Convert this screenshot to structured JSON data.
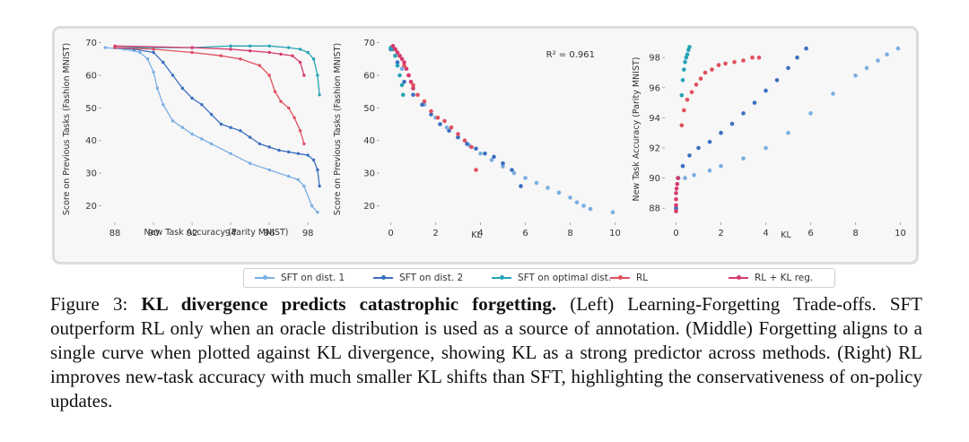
{
  "caption": {
    "figure_label": "Figure 3:",
    "title": "KL divergence predicts catastrophic forgetting.",
    "body": "(Left) Learning-Forgetting Trade-offs. SFT outperform RL only when an oracle distribution is used as a source of annotation. (Middle) Forgetting aligns to a single curve when plotted against KL divergence, showing KL as a strong predictor across methods. (Right) RL improves new-task accuracy with much smaller KL shifts than SFT, highlighting the conservativeness of on-policy updates."
  },
  "legend": [
    {
      "label": "SFT on dist. 1",
      "color": "#7aaee2"
    },
    {
      "label": "SFT on dist. 2",
      "color": "#3b6fc0"
    },
    {
      "label": "SFT on optimal dist.",
      "color": "#26a3b5"
    },
    {
      "label": "RL",
      "color": "#e0505d"
    },
    {
      "label": "RL + KL reg.",
      "color": "#d63a6c"
    }
  ],
  "chart_data": [
    {
      "type": "line",
      "title": "",
      "xlabel": "New Task Accuracy (Parity MNIST)",
      "ylabel": "Score on Previous Tasks (Fashion MNIST)",
      "xlim": [
        87.3,
        99.2
      ],
      "ylim": [
        16,
        71
      ],
      "xticks": [
        "88",
        "90",
        "92",
        "94",
        "96",
        "98"
      ],
      "yticks": [
        "70",
        "60",
        "50",
        "40",
        "30",
        "20"
      ],
      "series": [
        {
          "name": "SFT on dist. 1",
          "x": [
            87.5,
            88.5,
            89.3,
            89.7,
            90.0,
            90.2,
            90.5,
            91.0,
            91.5,
            92.0,
            92.5,
            93.0,
            94.0,
            95.0,
            96.0,
            97.0,
            97.5,
            97.8,
            98.2,
            98.5
          ],
          "y": [
            68.5,
            68,
            67,
            65,
            61,
            56,
            51,
            46,
            44,
            42,
            40.5,
            39,
            36,
            33,
            31,
            29,
            28,
            26,
            20,
            18
          ]
        },
        {
          "name": "SFT on dist. 2",
          "x": [
            88.0,
            89.0,
            90.0,
            90.5,
            91.0,
            91.5,
            92.0,
            92.5,
            93.0,
            93.5,
            94.0,
            94.5,
            95.0,
            95.5,
            96.0,
            96.5,
            97.0,
            97.5,
            98.0,
            98.3,
            98.5,
            98.6
          ],
          "y": [
            68.5,
            68,
            67,
            64,
            60,
            56,
            53,
            51,
            48,
            45,
            44,
            43,
            41,
            39,
            38,
            37,
            36.5,
            36,
            35.5,
            34,
            31,
            26
          ]
        },
        {
          "name": "SFT on optimal dist.",
          "x": [
            88.0,
            92.0,
            94.0,
            95.0,
            96.0,
            97.0,
            97.6,
            98.0,
            98.3,
            98.5,
            98.6
          ],
          "y": [
            68.5,
            68.5,
            69,
            69,
            69,
            68.5,
            68,
            67,
            65,
            60,
            54
          ]
        },
        {
          "name": "RL",
          "x": [
            88.0,
            90.0,
            92.0,
            93.5,
            94.5,
            95.5,
            96.0,
            96.3,
            96.6,
            97.0,
            97.3,
            97.6,
            97.8
          ],
          "y": [
            68.5,
            68,
            67,
            66,
            65,
            63,
            60,
            55,
            52,
            50,
            47,
            43,
            39
          ]
        },
        {
          "name": "RL + KL reg.",
          "x": [
            88.0,
            92.0,
            94.0,
            95.0,
            96.0,
            96.6,
            97.2,
            97.6,
            97.8
          ],
          "y": [
            69,
            68.5,
            68,
            67.5,
            67,
            66.5,
            66,
            64,
            60
          ]
        }
      ]
    },
    {
      "type": "scatter",
      "title": "",
      "xlabel": "KL",
      "ylabel": "Score on Previous Tasks (Fashion MNIST)",
      "xlim": [
        -0.5,
        10.3
      ],
      "ylim": [
        16,
        71
      ],
      "xticks": [
        "0",
        "2",
        "4",
        "6",
        "8",
        "10"
      ],
      "yticks": [
        "70",
        "60",
        "50",
        "40",
        "30",
        "20"
      ],
      "annotation": "R² = 0.961",
      "series": [
        {
          "name": "SFT on dist. 1",
          "x": [
            0,
            0.5,
            1,
            1.5,
            2,
            2.5,
            3,
            3.5,
            4,
            4.5,
            5,
            5.5,
            6,
            6.5,
            7,
            7.5,
            8,
            8.3,
            8.6,
            8.9,
            9.9
          ],
          "y": [
            68,
            62,
            56,
            51,
            47,
            44,
            41,
            38.5,
            36,
            34,
            32,
            30,
            28.5,
            27,
            25.5,
            24,
            22.5,
            21,
            20,
            19,
            18
          ]
        },
        {
          "name": "SFT on dist. 2",
          "x": [
            0,
            0.3,
            0.6,
            1,
            1.4,
            1.8,
            2.2,
            2.6,
            3,
            3.4,
            3.8,
            4.2,
            4.6,
            5,
            5.4,
            5.8
          ],
          "y": [
            68,
            64,
            58,
            54,
            51,
            48,
            45,
            43,
            41,
            39,
            37.5,
            36,
            35,
            33,
            31,
            26
          ]
        },
        {
          "name": "SFT on optimal dist.",
          "x": [
            0,
            0.1,
            0.2,
            0.3,
            0.4,
            0.5,
            0.55
          ],
          "y": [
            68.5,
            68,
            66,
            63,
            60,
            57,
            54
          ]
        },
        {
          "name": "RL",
          "x": [
            0.2,
            0.4,
            0.6,
            0.8,
            1,
            1.2,
            1.5,
            1.8,
            2.1,
            2.4,
            2.7,
            3,
            3.3,
            3.6,
            3.8
          ],
          "y": [
            68,
            66,
            63,
            60,
            57,
            54,
            52,
            49,
            47,
            46,
            44,
            42,
            40,
            38,
            31
          ]
        },
        {
          "name": "RL + KL reg.",
          "x": [
            0.1,
            0.2,
            0.3,
            0.4,
            0.5,
            0.6,
            0.7,
            0.8,
            0.9,
            1.0
          ],
          "y": [
            69,
            68,
            67,
            66,
            65,
            64,
            62,
            60,
            58,
            56
          ]
        }
      ]
    },
    {
      "type": "scatter",
      "title": "",
      "xlabel": "KL",
      "ylabel": "New Task Accuracy (Parity MNIST)",
      "xlim": [
        -0.5,
        10.3
      ],
      "ylim": [
        87.3,
        99.2
      ],
      "xticks": [
        "0",
        "2",
        "4",
        "6",
        "8",
        "10"
      ],
      "yticks": [
        "98",
        "96",
        "94",
        "92",
        "90",
        "88"
      ],
      "series": [
        {
          "name": "SFT on dist. 1",
          "x": [
            0,
            0.4,
            0.8,
            1.5,
            2,
            3,
            4,
            5,
            6,
            7,
            8,
            8.5,
            9,
            9.4,
            9.9
          ],
          "y": [
            88,
            90,
            90.2,
            90.5,
            90.8,
            91.3,
            92,
            93,
            94.3,
            95.6,
            96.8,
            97.3,
            97.8,
            98.2,
            98.6
          ]
        },
        {
          "name": "SFT on dist. 2",
          "x": [
            0,
            0.1,
            0.3,
            0.6,
            1,
            1.5,
            2,
            2.5,
            3,
            3.5,
            4,
            4.5,
            5,
            5.4,
            5.8
          ],
          "y": [
            88,
            90,
            90.8,
            91.5,
            92,
            92.4,
            93,
            93.6,
            94.3,
            95,
            95.8,
            96.5,
            97.3,
            98,
            98.6
          ]
        },
        {
          "name": "SFT on optimal dist.",
          "x": [
            0.25,
            0.3,
            0.35,
            0.4,
            0.45,
            0.5,
            0.55,
            0.6
          ],
          "y": [
            95.5,
            96.5,
            97.2,
            97.7,
            98,
            98.2,
            98.5,
            98.7
          ]
        },
        {
          "name": "RL",
          "x": [
            0.25,
            0.35,
            0.5,
            0.7,
            0.9,
            1.1,
            1.3,
            1.6,
            1.9,
            2.2,
            2.6,
            3.0,
            3.4,
            3.7
          ],
          "y": [
            93.5,
            94.5,
            95.2,
            95.7,
            96.2,
            96.6,
            97,
            97.2,
            97.5,
            97.6,
            97.7,
            97.8,
            98,
            98
          ]
        },
        {
          "name": "RL + KL reg.",
          "x": [
            0,
            0,
            0,
            0,
            0.02,
            0.05,
            0.08
          ],
          "y": [
            87.8,
            88.2,
            88.6,
            89,
            89.3,
            89.6,
            90
          ]
        }
      ]
    }
  ]
}
